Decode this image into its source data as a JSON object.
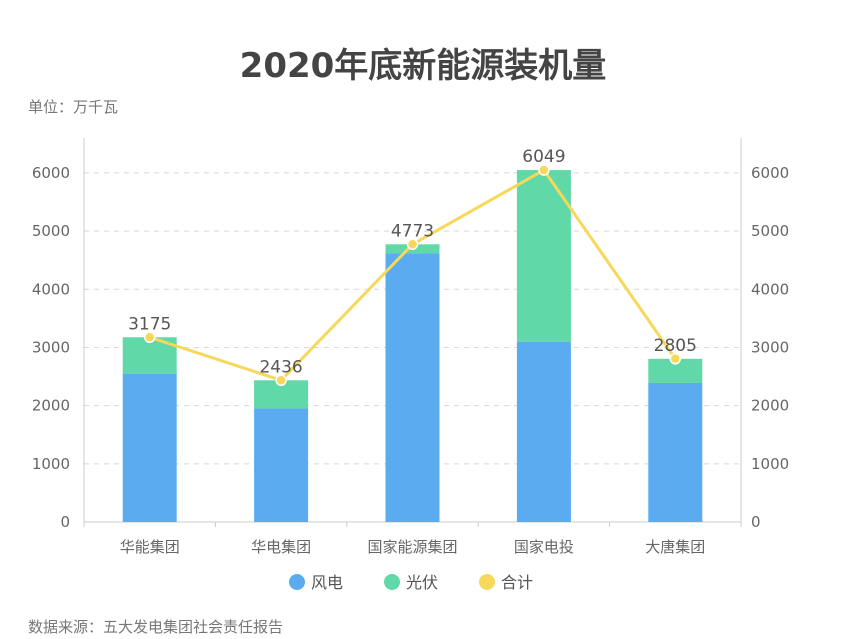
{
  "title": "2020年底新能源装机量",
  "unit_label": "单位：万千瓦",
  "source_label": "数据来源：五大发电集团社会责任报告",
  "chart_data": {
    "type": "bar",
    "stacked": true,
    "categories": [
      "华能集团",
      "华电集团",
      "国家能源集团",
      "国家电投",
      "大唐集团"
    ],
    "series": [
      {
        "name": "风电",
        "type": "bar",
        "color": "#5aabf0",
        "values": [
          2550,
          1950,
          4620,
          3100,
          2390
        ]
      },
      {
        "name": "光伏",
        "type": "bar",
        "color": "#60d8a8",
        "values": [
          625,
          486,
          153,
          2949,
          415
        ]
      },
      {
        "name": "合计",
        "type": "line",
        "color": "#f7d85a",
        "values": [
          3175,
          2436,
          4773,
          6049,
          2805
        ]
      }
    ],
    "ylim": [
      0,
      6600
    ],
    "yticks": [
      0,
      1000,
      2000,
      3000,
      4000,
      5000,
      6000
    ],
    "grid": true,
    "legend_position": "bottom-center"
  }
}
